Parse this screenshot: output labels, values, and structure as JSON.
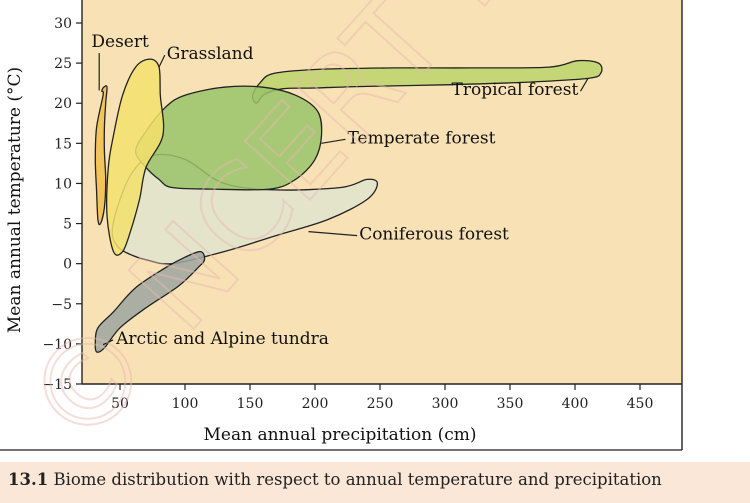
{
  "chart_data": {
    "type": "region",
    "xlabel": "Mean annual precipitation (cm)",
    "ylabel": "Mean annual temperature (°C)",
    "xlim": [
      20,
      470
    ],
    "ylim": [
      -15,
      30
    ],
    "x_ticks": [
      50,
      100,
      150,
      200,
      250,
      300,
      350,
      400,
      450
    ],
    "y_ticks": [
      30,
      25,
      20,
      15,
      10,
      5,
      0,
      -5,
      -10,
      -15
    ],
    "x_tick_labels": [
      "50",
      "100",
      "150",
      "200",
      "250",
      "300",
      "350",
      "400",
      "450"
    ],
    "y_tick_labels": [
      "30",
      "25",
      "20",
      "15",
      "10",
      "5",
      "0",
      "−5",
      "−10",
      "−15"
    ],
    "grid": false,
    "background_color": "#f8e2b5",
    "regions": [
      {
        "name": "Tropical forest",
        "color": "#bcd46a",
        "points": [
          [
            152,
            21
          ],
          [
            158,
            22.6
          ],
          [
            168,
            23.7
          ],
          [
            200,
            24.2
          ],
          [
            260,
            24.4
          ],
          [
            320,
            24.4
          ],
          [
            380,
            24.5
          ],
          [
            402,
            25.3
          ],
          [
            418,
            25
          ],
          [
            420,
            23.8
          ],
          [
            410,
            23.1
          ],
          [
            360,
            22.6
          ],
          [
            300,
            22.3
          ],
          [
            240,
            22.1
          ],
          [
            200,
            21.9
          ],
          [
            175,
            21.8
          ],
          [
            161,
            21.1
          ],
          [
            155,
            20
          ]
        ],
        "label": "Tropical forest",
        "label_at": [
          305,
          21
        ],
        "leader_to": [
          410,
          23.1
        ]
      },
      {
        "name": "Coniferous forest",
        "color": "#dfe4cd",
        "points": [
          [
            44,
            4
          ],
          [
            50,
            8
          ],
          [
            60,
            11.5
          ],
          [
            75,
            13.5
          ],
          [
            100,
            13
          ],
          [
            130,
            10
          ],
          [
            170,
            9.2
          ],
          [
            220,
            9.5
          ],
          [
            240,
            10.5
          ],
          [
            248,
            10
          ],
          [
            240,
            8
          ],
          [
            210,
            5.5
          ],
          [
            170,
            3.5
          ],
          [
            130,
            1.5
          ],
          [
            90,
            0
          ],
          [
            70,
            0.5
          ],
          [
            60,
            1
          ],
          [
            49,
            2
          ]
        ],
        "label": "Coniferous forest",
        "label_at": [
          234,
          3
        ],
        "leader_to": [
          195,
          4
        ]
      },
      {
        "name": "Temperate forest",
        "color": "#9ac46a",
        "points": [
          [
            62,
            14
          ],
          [
            70,
            16.5
          ],
          [
            85,
            19.5
          ],
          [
            100,
            21
          ],
          [
            130,
            22
          ],
          [
            160,
            22
          ],
          [
            185,
            21
          ],
          [
            202,
            19
          ],
          [
            205,
            16
          ],
          [
            200,
            13
          ],
          [
            185,
            10.5
          ],
          [
            165,
            9.3
          ],
          [
            120,
            9.3
          ],
          [
            90,
            9.5
          ],
          [
            80,
            10.5
          ],
          [
            70,
            12
          ]
        ],
        "label": "Temperate forest",
        "label_at": [
          225,
          15
        ],
        "leader_to": [
          205,
          15
        ]
      },
      {
        "name": "Desert",
        "color": "#f2bf4a",
        "points": [
          [
            36,
            21.5
          ],
          [
            37,
            21
          ],
          [
            32,
            17
          ],
          [
            31,
            13
          ],
          [
            32,
            9
          ],
          [
            33,
            5.5
          ],
          [
            35,
            5
          ],
          [
            38,
            7
          ],
          [
            39,
            10.5
          ],
          [
            38,
            14
          ],
          [
            38,
            17
          ],
          [
            39,
            20
          ],
          [
            40,
            22
          ],
          [
            37.5,
            22
          ]
        ],
        "label": "Desert",
        "label_at": [
          28,
          27
        ],
        "leader_to": [
          34,
          21.6
        ]
      },
      {
        "name": "Grassland",
        "color": "#f3e16e",
        "points": [
          [
            52,
            21
          ],
          [
            62,
            24.5
          ],
          [
            73,
            25.5
          ],
          [
            80,
            24.5
          ],
          [
            81,
            21
          ],
          [
            83,
            16
          ],
          [
            70,
            12
          ],
          [
            65,
            8
          ],
          [
            58,
            4
          ],
          [
            52,
            1.5
          ],
          [
            45,
            1.5
          ],
          [
            40,
            6
          ],
          [
            41,
            12
          ],
          [
            45,
            16
          ]
        ],
        "label": "Grassland",
        "label_at": [
          86,
          25.5
        ],
        "leader_to": [
          80,
          24.5
        ]
      },
      {
        "name": "Arctic and Alpine tundra",
        "color": "#9ea5a0",
        "points": [
          [
            31,
            -9.8
          ],
          [
            33,
            -8
          ],
          [
            45,
            -6
          ],
          [
            62,
            -3
          ],
          [
            85,
            -0.5
          ],
          [
            100,
            0.8
          ],
          [
            112,
            1.5
          ],
          [
            115,
            0.5
          ],
          [
            110,
            -0.5
          ],
          [
            95,
            -2.8
          ],
          [
            70,
            -5.5
          ],
          [
            50,
            -8
          ],
          [
            38,
            -10.5
          ],
          [
            32,
            -11
          ]
        ],
        "label": "Arctic and Alpine tundra",
        "label_at": [
          47,
          -10
        ],
        "leader_to": [
          37,
          -10.1
        ]
      }
    ]
  },
  "caption": {
    "number": "13.1",
    "text": "Biome distribution with respect to annual temperature and precipitation"
  },
  "watermark": {
    "text": "© NCERT not to be republished",
    "color": "#e9b8b0"
  }
}
